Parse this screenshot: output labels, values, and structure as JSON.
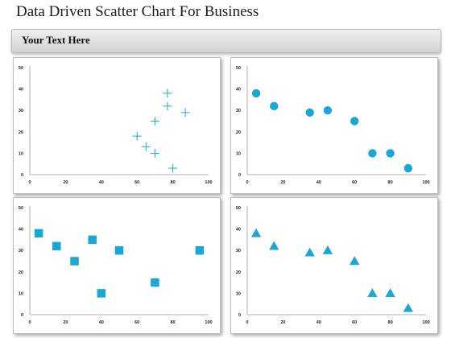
{
  "title": "Data Driven Scatter Chart For Business",
  "banner": {
    "text": "Your Text Here"
  },
  "colors": {
    "marker": "#1aa7d6",
    "axis": "#9a9a9a",
    "panel_border": "#bdbdbd"
  },
  "chart_data": [
    {
      "type": "scatter",
      "marker": "plus",
      "xlim": [
        0,
        100
      ],
      "ylim": [
        0,
        50
      ],
      "xticks": [
        "0",
        "20",
        "40",
        "60",
        "80",
        "100"
      ],
      "yticks": [
        "0",
        "10",
        "20",
        "30",
        "40",
        "50"
      ],
      "points": [
        [
          60,
          18
        ],
        [
          65,
          13
        ],
        [
          70,
          10
        ],
        [
          70,
          25
        ],
        [
          77,
          32
        ],
        [
          77,
          38
        ],
        [
          80,
          3
        ],
        [
          87,
          29
        ]
      ]
    },
    {
      "type": "scatter",
      "marker": "circle",
      "xlim": [
        0,
        100
      ],
      "ylim": [
        0,
        50
      ],
      "xticks": [
        "0",
        "20",
        "40",
        "60",
        "80",
        "100"
      ],
      "yticks": [
        "0",
        "10",
        "20",
        "30",
        "40",
        "50"
      ],
      "points": [
        [
          5,
          38
        ],
        [
          15,
          32
        ],
        [
          35,
          29
        ],
        [
          45,
          30
        ],
        [
          60,
          25
        ],
        [
          70,
          10
        ],
        [
          80,
          10
        ],
        [
          90,
          3
        ]
      ]
    },
    {
      "type": "scatter",
      "marker": "square",
      "xlim": [
        0,
        100
      ],
      "ylim": [
        0,
        50
      ],
      "xticks": [
        "0",
        "20",
        "40",
        "60",
        "80",
        "100"
      ],
      "yticks": [
        "0",
        "10",
        "20",
        "30",
        "40",
        "50"
      ],
      "points": [
        [
          5,
          38
        ],
        [
          15,
          32
        ],
        [
          25,
          25
        ],
        [
          35,
          35
        ],
        [
          40,
          10
        ],
        [
          50,
          30
        ],
        [
          70,
          15
        ],
        [
          95,
          30
        ]
      ]
    },
    {
      "type": "scatter",
      "marker": "triangle",
      "xlim": [
        0,
        100
      ],
      "ylim": [
        0,
        50
      ],
      "xticks": [
        "0",
        "20",
        "40",
        "60",
        "80",
        "100"
      ],
      "yticks": [
        "0",
        "10",
        "20",
        "30",
        "40",
        "50"
      ],
      "points": [
        [
          5,
          38
        ],
        [
          15,
          32
        ],
        [
          35,
          29
        ],
        [
          45,
          30
        ],
        [
          60,
          25
        ],
        [
          70,
          10
        ],
        [
          80,
          10
        ],
        [
          90,
          3
        ]
      ]
    }
  ]
}
